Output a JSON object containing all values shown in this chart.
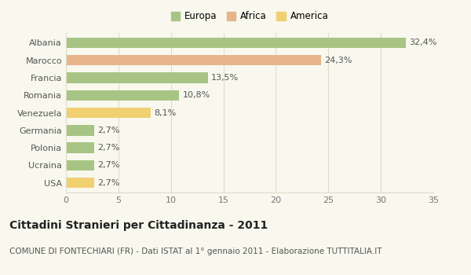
{
  "categories": [
    "Albania",
    "Marocco",
    "Francia",
    "Romania",
    "Venezuela",
    "Germania",
    "Polonia",
    "Ucraina",
    "USA"
  ],
  "values": [
    32.4,
    24.3,
    13.5,
    10.8,
    8.1,
    2.7,
    2.7,
    2.7,
    2.7
  ],
  "labels": [
    "32,4%",
    "24,3%",
    "13,5%",
    "10,8%",
    "8,1%",
    "2,7%",
    "2,7%",
    "2,7%",
    "2,7%"
  ],
  "colors": [
    "#a8c484",
    "#e8b48c",
    "#a8c484",
    "#a8c484",
    "#f0d070",
    "#a8c484",
    "#a8c484",
    "#a8c484",
    "#f0d070"
  ],
  "legend": [
    {
      "label": "Europa",
      "color": "#a8c484"
    },
    {
      "label": "Africa",
      "color": "#e8b48c"
    },
    {
      "label": "America",
      "color": "#f0d070"
    }
  ],
  "xlim": [
    0,
    35
  ],
  "xticks": [
    0,
    5,
    10,
    15,
    20,
    25,
    30,
    35
  ],
  "title": "Cittadini Stranieri per Cittadinanza - 2011",
  "subtitle": "COMUNE DI FONTECHIARI (FR) - Dati ISTAT al 1° gennaio 2011 - Elaborazione TUTTITALIA.IT",
  "background_color": "#f8f8ee",
  "grid_color": "#ddddcc",
  "bar_height": 0.6,
  "title_fontsize": 10,
  "subtitle_fontsize": 7.5,
  "label_fontsize": 8,
  "tick_fontsize": 8,
  "legend_fontsize": 8.5
}
